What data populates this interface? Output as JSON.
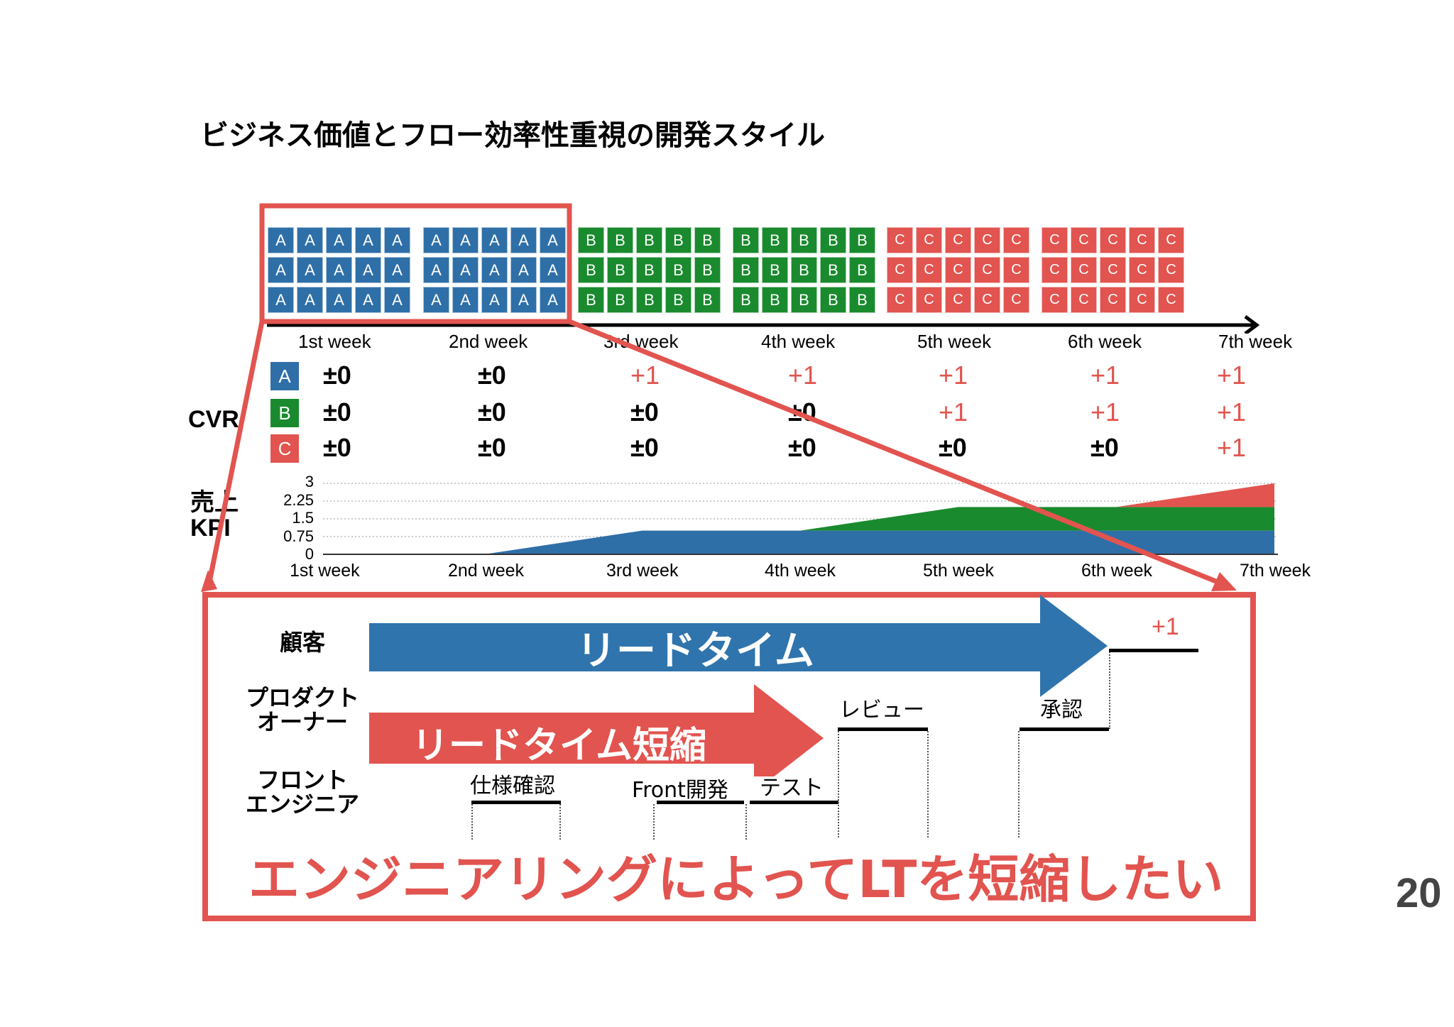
{
  "title": "ビジネス価値とフロー効率性重視の開発スタイル",
  "page_number": "20",
  "colors": {
    "A": "#2f6fa8",
    "B": "#1a8a2e",
    "C": "#e2544f",
    "highlight": "#e2544f"
  },
  "backlog": {
    "groups": [
      {
        "letter": "A",
        "week": "1st week"
      },
      {
        "letter": "A",
        "week": "2nd week"
      },
      {
        "letter": "B",
        "week": "3rd week"
      },
      {
        "letter": "B",
        "week": "4th week"
      },
      {
        "letter": "C",
        "week": "5th week"
      },
      {
        "letter": "C",
        "week": "6th week"
      }
    ],
    "weeks": [
      "1st week",
      "2nd week",
      "3rd week",
      "4th week",
      "5th week",
      "6th week",
      "7th week"
    ]
  },
  "cvr": {
    "label": "CVR",
    "rows": [
      {
        "key": "A",
        "values": [
          "±0",
          "±0",
          "+1",
          "+1",
          "+1",
          "+1",
          "+1"
        ]
      },
      {
        "key": "B",
        "values": [
          "±0",
          "±0",
          "±0",
          "±0",
          "+1",
          "+1",
          "+1"
        ]
      },
      {
        "key": "C",
        "values": [
          "±0",
          "±0",
          "±0",
          "±0",
          "±0",
          "±0",
          "+1"
        ]
      }
    ]
  },
  "kpi": {
    "label_line1": "売上",
    "label_line2": "KPI",
    "ticks": [
      "3",
      "2.25",
      "1.5",
      "0.75",
      "0"
    ],
    "weeks": [
      "1st week",
      "2nd week",
      "3rd week",
      "4th week",
      "5th week",
      "6th week",
      "7th week"
    ]
  },
  "chart_data": {
    "type": "area",
    "x": [
      "1st week",
      "2nd week",
      "3rd week",
      "4th week",
      "5th week",
      "6th week",
      "7th week"
    ],
    "series": [
      {
        "name": "A",
        "values": [
          0,
          0,
          1,
          1,
          1,
          1,
          1
        ]
      },
      {
        "name": "B",
        "values": [
          0,
          0,
          0,
          0,
          1,
          1,
          1
        ]
      },
      {
        "name": "C",
        "values": [
          0,
          0,
          0,
          0,
          0,
          0,
          1
        ]
      }
    ],
    "stacked": true,
    "ylim": [
      0,
      3
    ],
    "yticks": [
      0,
      0.75,
      1.5,
      2.25,
      3
    ],
    "grid": true
  },
  "flow": {
    "roles": {
      "customer": "顧客",
      "po_line1": "プロダクト",
      "po_line2": "オーナー",
      "fe_line1": "フロント",
      "fe_line2": "エンジニア"
    },
    "lead_time": "リードタイム",
    "lead_time_short": "リードタイム短縮",
    "tasks": {
      "spec": "仕様確認",
      "front": "Front開発",
      "test": "テスト",
      "review": "レビュー",
      "approve": "承認"
    },
    "plus_one": "+1",
    "message": "エンジニアリングによってLTを短縮したい"
  }
}
